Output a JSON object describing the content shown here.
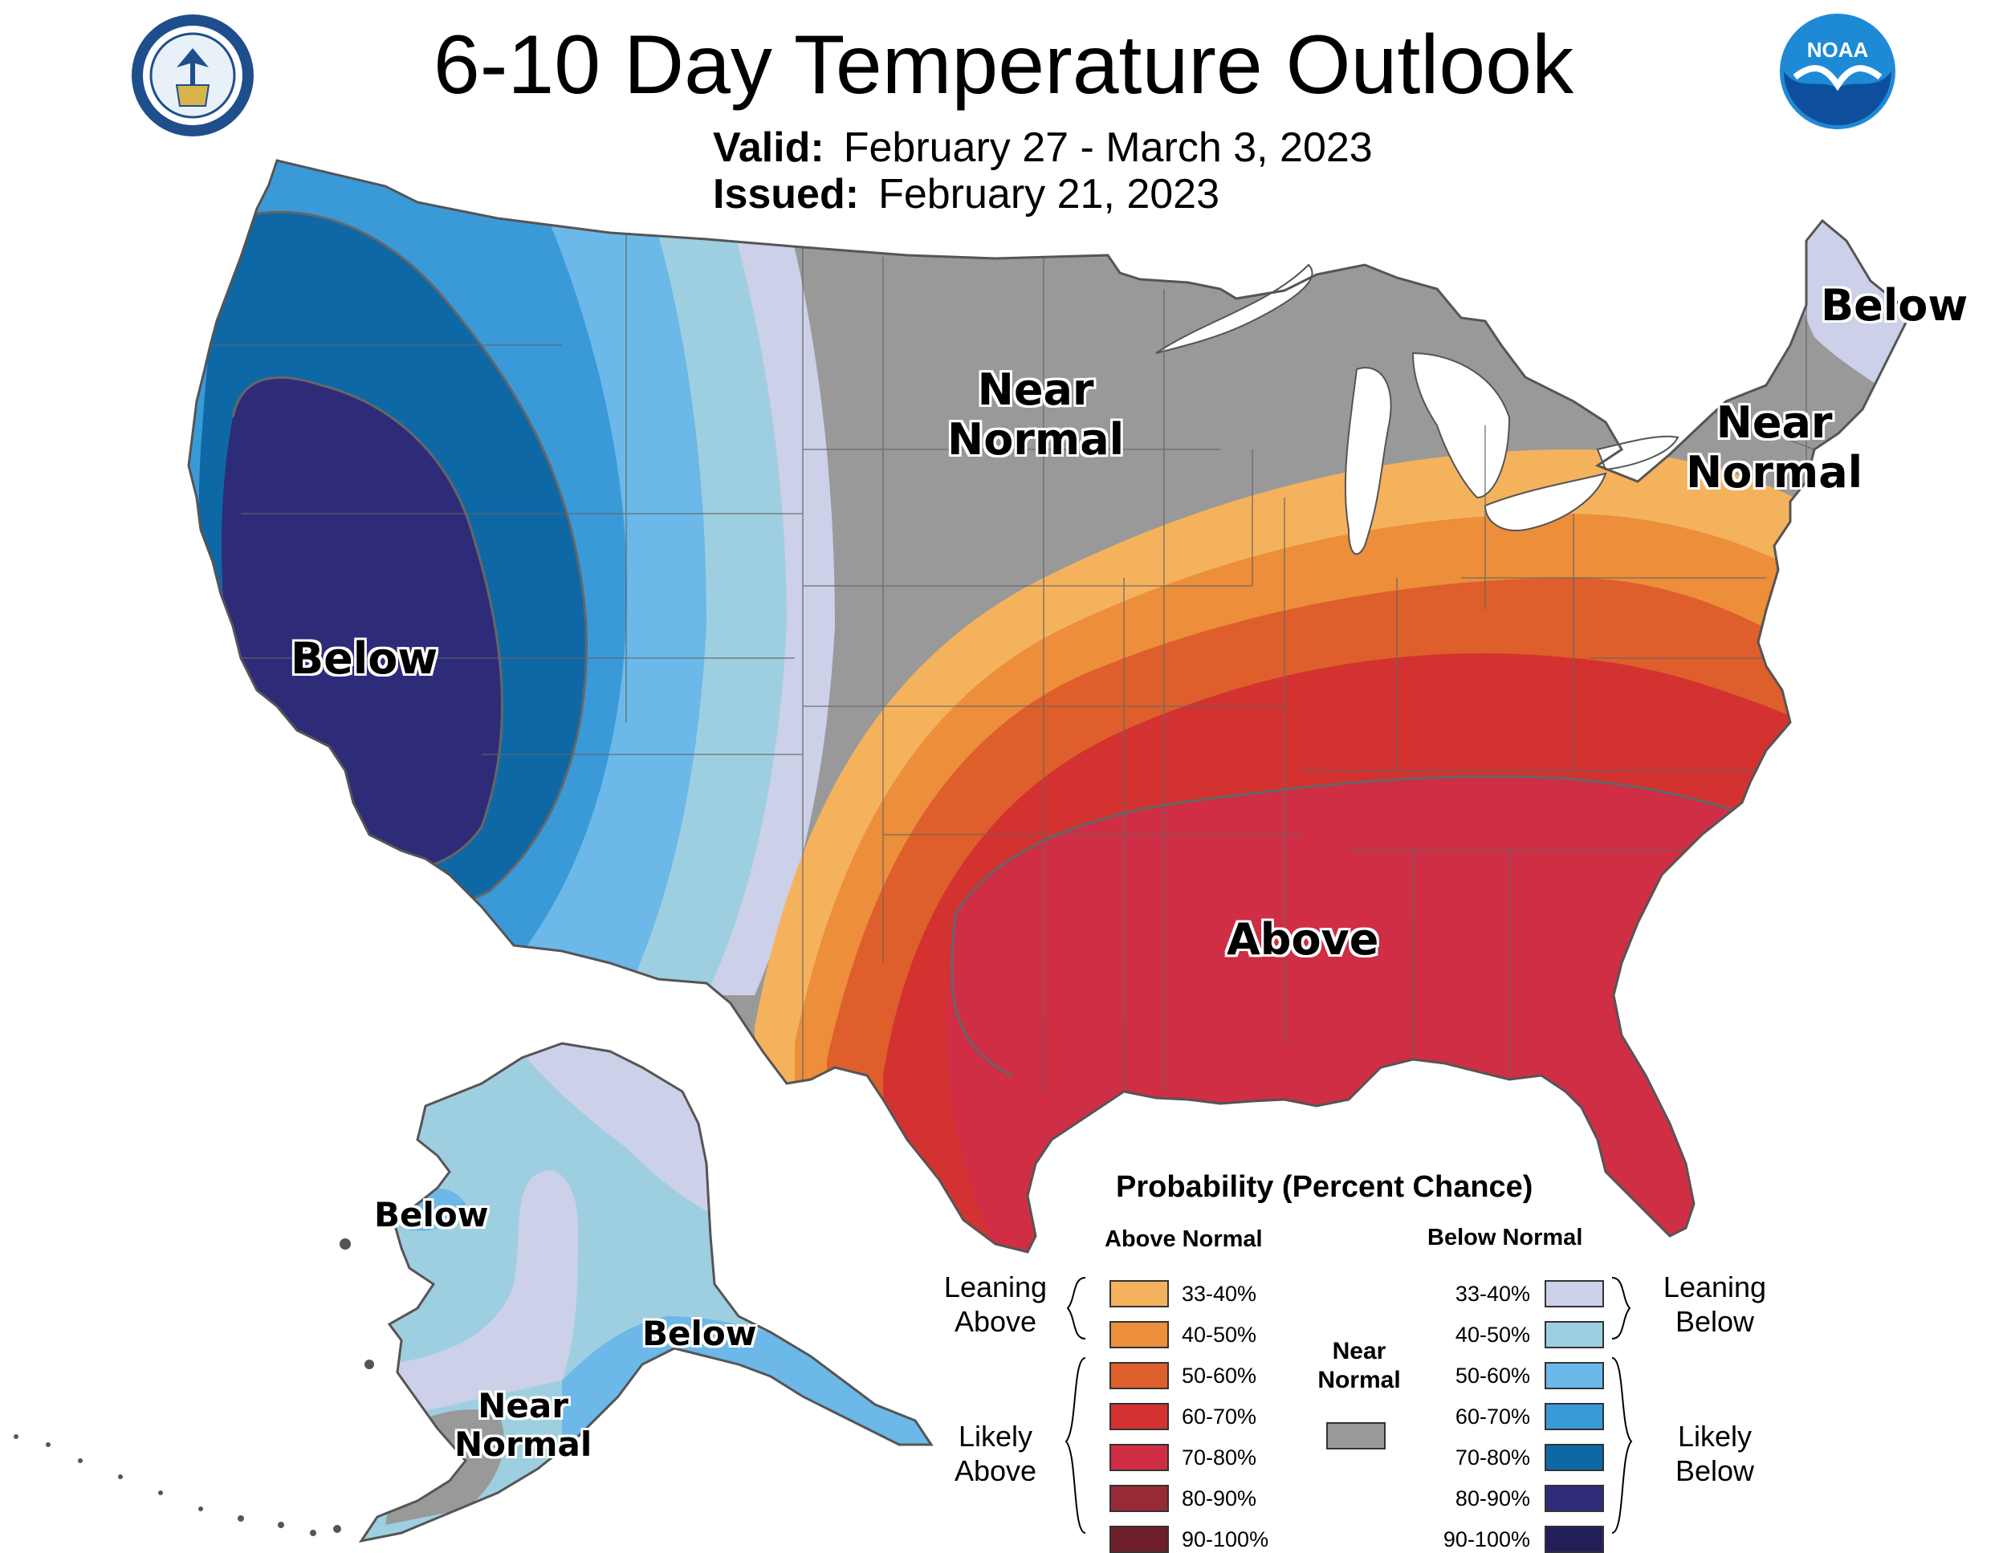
{
  "header": {
    "title": "6-10 Day Temperature Outlook",
    "valid_label": "Valid:",
    "valid_value": "February 27 - March 3, 2023",
    "issued_label": "Issued:",
    "issued_value": "February 21, 2023"
  },
  "logos": {
    "left": "department-of-commerce-seal",
    "right": "noaa-logo",
    "right_text": "NOAA"
  },
  "map_labels": {
    "west_below": "Below",
    "central_near_1": "Near",
    "central_near_2": "Normal",
    "ne_below": "Below",
    "ne_near_1": "Near",
    "ne_near_2": "Normal",
    "south_above": "Above",
    "ak_below_west": "Below",
    "ak_below_se": "Below",
    "ak_near_1": "Near",
    "ak_near_2": "Normal"
  },
  "legend": {
    "title": "Probability (Percent Chance)",
    "above_header": "Above Normal",
    "below_header": "Below Normal",
    "near_label_1": "Near",
    "near_label_2": "Normal",
    "near_color": "#999999",
    "leaning_above_1": "Leaning",
    "leaning_above_2": "Above",
    "likely_above_1": "Likely",
    "likely_above_2": "Above",
    "leaning_below_1": "Leaning",
    "leaning_below_2": "Below",
    "likely_below_1": "Likely",
    "likely_below_2": "Below",
    "above": [
      {
        "range": "33-40%",
        "color": "#F5B25D"
      },
      {
        "range": "40-50%",
        "color": "#EC8E3A"
      },
      {
        "range": "50-60%",
        "color": "#DE5F2B"
      },
      {
        "range": "60-70%",
        "color": "#D43231"
      },
      {
        "range": "70-80%",
        "color": "#CF2E45"
      },
      {
        "range": "80-90%",
        "color": "#972A34"
      },
      {
        "range": "90-100%",
        "color": "#6E1E2A"
      }
    ],
    "below": [
      {
        "range": "33-40%",
        "color": "#CCD0E8"
      },
      {
        "range": "40-50%",
        "color": "#9ECFE0"
      },
      {
        "range": "50-60%",
        "color": "#6CB8E8"
      },
      {
        "range": "60-70%",
        "color": "#3A9AD8"
      },
      {
        "range": "70-80%",
        "color": "#0F68A6"
      },
      {
        "range": "80-90%",
        "color": "#2E2C78"
      },
      {
        "range": "90-100%",
        "color": "#221E5A"
      }
    ]
  }
}
